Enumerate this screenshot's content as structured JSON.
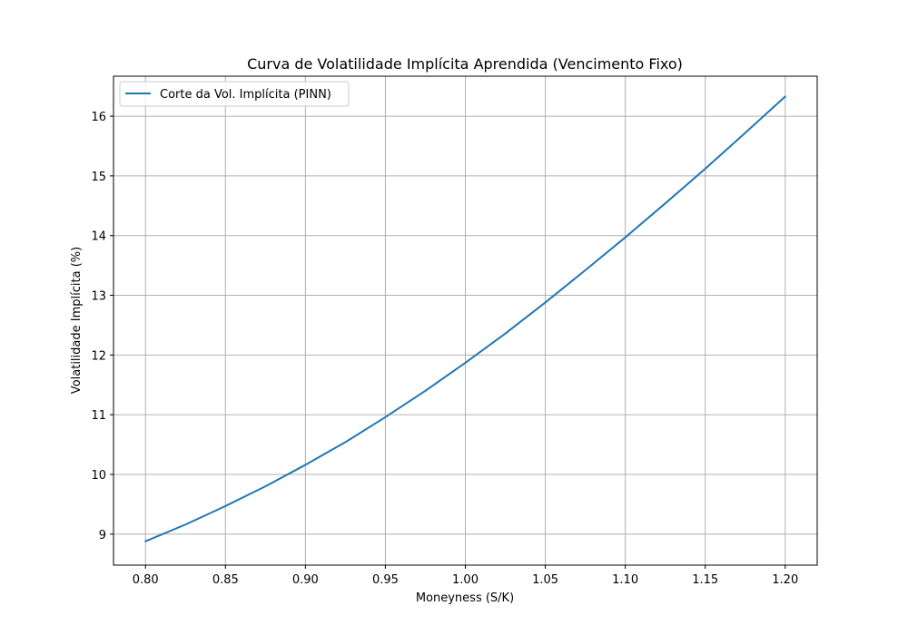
{
  "chart_data": {
    "type": "line",
    "title": "Curva de Volatilidade Implícita Aprendida (Vencimento Fixo)",
    "xlabel": "Moneyness (S/K)",
    "ylabel": "Volatilidade Implícita (%)",
    "xlim": [
      0.78,
      1.22
    ],
    "ylim": [
      8.48,
      16.67
    ],
    "xticks": [
      0.8,
      0.85,
      0.9,
      0.95,
      1.0,
      1.05,
      1.1,
      1.15,
      1.2
    ],
    "xtick_labels": [
      "0.80",
      "0.85",
      "0.90",
      "0.95",
      "1.00",
      "1.05",
      "1.10",
      "1.15",
      "1.20"
    ],
    "yticks": [
      9,
      10,
      11,
      12,
      13,
      14,
      15,
      16
    ],
    "ytick_labels": [
      "9",
      "10",
      "11",
      "12",
      "13",
      "14",
      "15",
      "16"
    ],
    "grid": true,
    "legend_position": "upper-left",
    "series": [
      {
        "name": "Corte da Vol. Implícita (PINN)",
        "color": "#1f77b4",
        "x": [
          0.8,
          0.825,
          0.85,
          0.875,
          0.9,
          0.925,
          0.95,
          0.975,
          1.0,
          1.025,
          1.05,
          1.075,
          1.1,
          1.125,
          1.15,
          1.175,
          1.2
        ],
        "y": [
          8.88,
          9.16,
          9.47,
          9.8,
          10.16,
          10.54,
          10.96,
          11.4,
          11.87,
          12.36,
          12.88,
          13.42,
          13.97,
          14.54,
          15.12,
          15.72,
          16.33
        ]
      }
    ]
  }
}
